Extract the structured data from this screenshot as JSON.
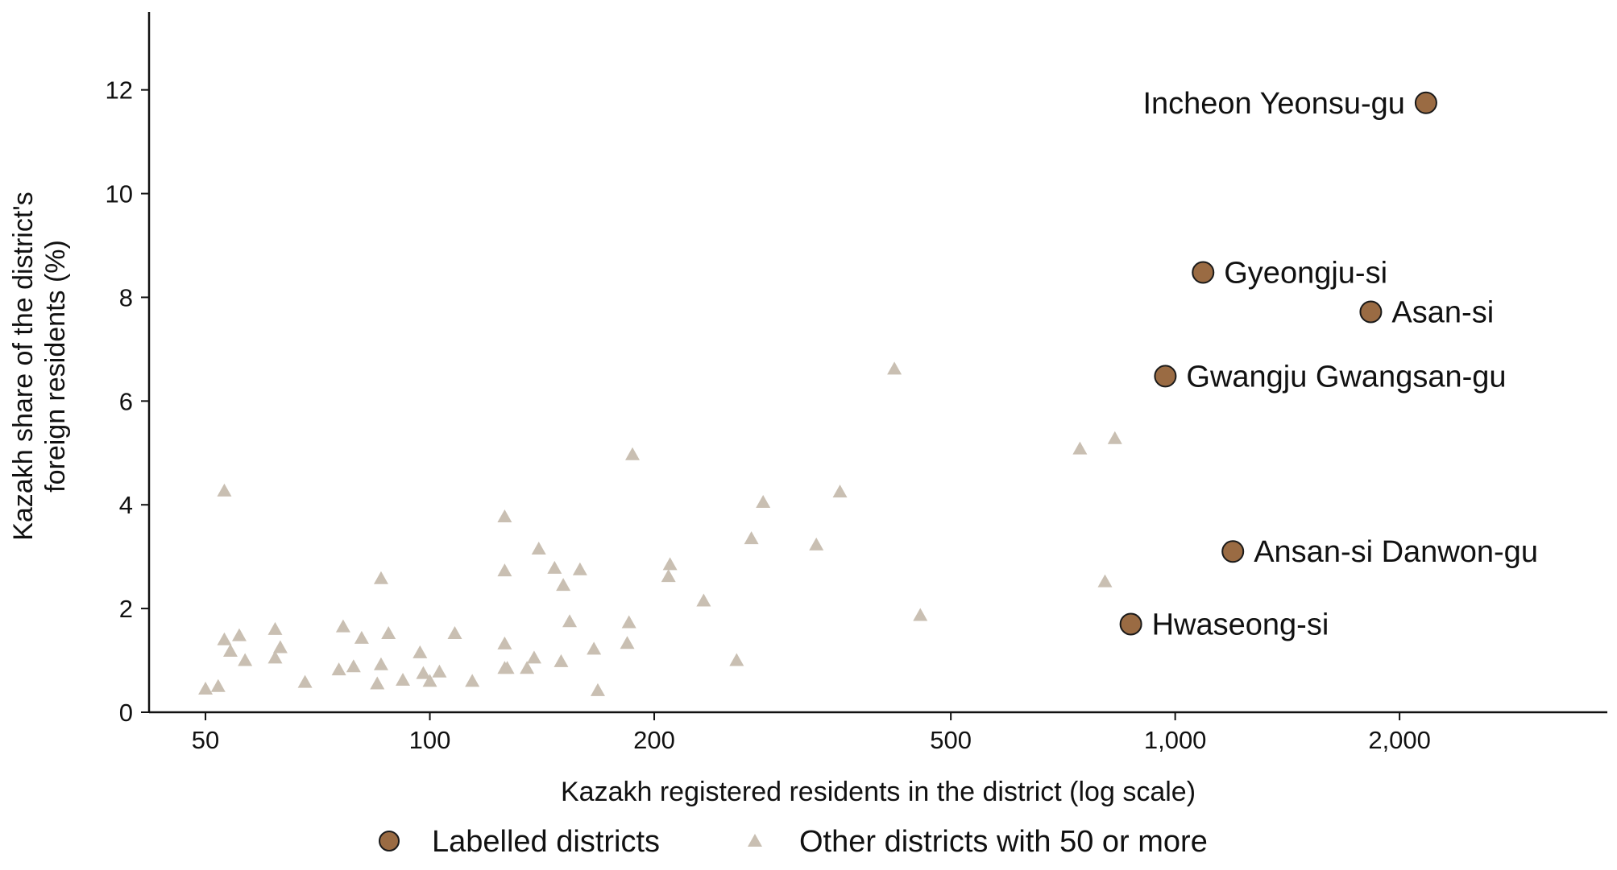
{
  "chart_data": {
    "type": "scatter",
    "title": "",
    "xlabel": "Kazakh registered residents in the district (log scale)",
    "ylabel_lines": [
      "Kazakh share of the district's",
      "foreign residents (%)"
    ],
    "x_scale": "log",
    "xlim": [
      42,
      3800
    ],
    "ylim": [
      0,
      13.5
    ],
    "x_ticks": [
      {
        "value": 50,
        "label": "50"
      },
      {
        "value": 100,
        "label": "100"
      },
      {
        "value": 200,
        "label": "200"
      },
      {
        "value": 500,
        "label": "500"
      },
      {
        "value": 1000,
        "label": "1,000"
      },
      {
        "value": 2000,
        "label": "2,000"
      }
    ],
    "y_ticks": [
      {
        "value": 0,
        "label": "0"
      },
      {
        "value": 2,
        "label": "2"
      },
      {
        "value": 4,
        "label": "4"
      },
      {
        "value": 6,
        "label": "6"
      },
      {
        "value": 8,
        "label": "8"
      },
      {
        "value": 10,
        "label": "10"
      },
      {
        "value": 12,
        "label": "12"
      }
    ],
    "grid": false,
    "legend_position": "bottom-center",
    "series": [
      {
        "name": "Labelled districts",
        "marker": "circle",
        "color": "#9a6b43",
        "edge_color": "#1a1a1a",
        "points": [
          {
            "label": "Incheon Yeonsu-gu",
            "x": 2170,
            "y": 11.75,
            "label_side": "left"
          },
          {
            "label": "Gyeongju-si",
            "x": 1090,
            "y": 8.48,
            "label_side": "right"
          },
          {
            "label": "Asan-si",
            "x": 1830,
            "y": 7.72,
            "label_side": "right"
          },
          {
            "label": "Gwangju Gwangsan-gu",
            "x": 970,
            "y": 6.48,
            "label_side": "right"
          },
          {
            "label": "Ansan-si Danwon-gu",
            "x": 1195,
            "y": 3.1,
            "label_side": "right"
          },
          {
            "label": "Hwaseong-si",
            "x": 872,
            "y": 1.7,
            "label_side": "right"
          }
        ]
      },
      {
        "name": "Other districts with 50 or more",
        "marker": "triangle",
        "color": "#c9bfb2",
        "points": [
          {
            "x": 50,
            "y": 0.45
          },
          {
            "x": 52,
            "y": 0.5
          },
          {
            "x": 53,
            "y": 1.4
          },
          {
            "x": 53,
            "y": 4.27
          },
          {
            "x": 54,
            "y": 1.18
          },
          {
            "x": 55.5,
            "y": 1.48
          },
          {
            "x": 56.5,
            "y": 1.0
          },
          {
            "x": 62,
            "y": 1.6
          },
          {
            "x": 62,
            "y": 1.05
          },
          {
            "x": 63,
            "y": 1.25
          },
          {
            "x": 68,
            "y": 0.58
          },
          {
            "x": 75.5,
            "y": 0.82
          },
          {
            "x": 76.5,
            "y": 1.65
          },
          {
            "x": 79,
            "y": 0.88
          },
          {
            "x": 81,
            "y": 1.43
          },
          {
            "x": 85,
            "y": 0.55
          },
          {
            "x": 86,
            "y": 0.92
          },
          {
            "x": 86,
            "y": 2.58
          },
          {
            "x": 88,
            "y": 1.52
          },
          {
            "x": 92,
            "y": 0.62
          },
          {
            "x": 97,
            "y": 1.15
          },
          {
            "x": 98,
            "y": 0.75
          },
          {
            "x": 100,
            "y": 0.6
          },
          {
            "x": 103,
            "y": 0.78
          },
          {
            "x": 108,
            "y": 1.52
          },
          {
            "x": 114,
            "y": 0.6
          },
          {
            "x": 126,
            "y": 3.77
          },
          {
            "x": 126,
            "y": 2.73
          },
          {
            "x": 126,
            "y": 1.32
          },
          {
            "x": 126,
            "y": 0.85
          },
          {
            "x": 127,
            "y": 0.85
          },
          {
            "x": 135,
            "y": 0.85
          },
          {
            "x": 138,
            "y": 1.05
          },
          {
            "x": 140,
            "y": 3.15
          },
          {
            "x": 147,
            "y": 2.78
          },
          {
            "x": 150,
            "y": 0.98
          },
          {
            "x": 151,
            "y": 2.45
          },
          {
            "x": 154,
            "y": 1.75
          },
          {
            "x": 159,
            "y": 2.75
          },
          {
            "x": 166,
            "y": 1.22
          },
          {
            "x": 168,
            "y": 0.42
          },
          {
            "x": 184,
            "y": 1.33
          },
          {
            "x": 185,
            "y": 1.73
          },
          {
            "x": 187,
            "y": 4.97
          },
          {
            "x": 209,
            "y": 2.62
          },
          {
            "x": 210,
            "y": 2.85
          },
          {
            "x": 233,
            "y": 2.15
          },
          {
            "x": 258,
            "y": 1.0
          },
          {
            "x": 270,
            "y": 3.35
          },
          {
            "x": 280,
            "y": 4.05
          },
          {
            "x": 330,
            "y": 3.23
          },
          {
            "x": 355,
            "y": 4.25
          },
          {
            "x": 420,
            "y": 6.62
          },
          {
            "x": 455,
            "y": 1.87
          },
          {
            "x": 745,
            "y": 5.08
          },
          {
            "x": 805,
            "y": 2.52
          },
          {
            "x": 830,
            "y": 5.28
          }
        ]
      }
    ]
  }
}
